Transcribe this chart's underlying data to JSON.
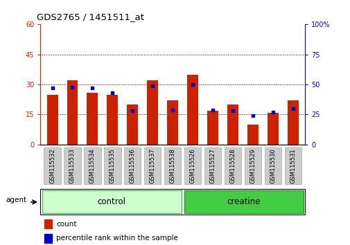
{
  "title": "GDS2765 / 1451511_at",
  "samples": [
    "GSM115532",
    "GSM115533",
    "GSM115534",
    "GSM115535",
    "GSM115536",
    "GSM115537",
    "GSM115538",
    "GSM115526",
    "GSM115527",
    "GSM115528",
    "GSM115529",
    "GSM115530",
    "GSM115531"
  ],
  "count_values": [
    25,
    32,
    26,
    25,
    20,
    32,
    22,
    35,
    17,
    20,
    10,
    16,
    22
  ],
  "percentile_values": [
    47,
    48,
    47,
    43,
    28,
    49,
    29,
    50,
    29,
    28,
    24,
    27,
    30
  ],
  "group_labels": [
    "control",
    "creatine"
  ],
  "group_control_count": 7,
  "group_creatine_count": 6,
  "left_ylim": [
    0,
    60
  ],
  "right_ylim": [
    0,
    100
  ],
  "left_yticks": [
    0,
    15,
    30,
    45,
    60
  ],
  "right_yticks": [
    0,
    25,
    50,
    75,
    100
  ],
  "bar_color": "#cc2200",
  "dot_color": "#0000cc",
  "control_bg": "#ccffcc",
  "creatine_bg": "#44cc44",
  "xtick_box_color": "#cccccc",
  "xtick_box_edge": "#999999",
  "agent_label": "agent",
  "legend_count": "count",
  "legend_percentile": "percentile rank within the sample",
  "bar_width": 0.55,
  "right_ytick_labels": [
    "0",
    "25",
    "50",
    "75",
    "100%"
  ]
}
